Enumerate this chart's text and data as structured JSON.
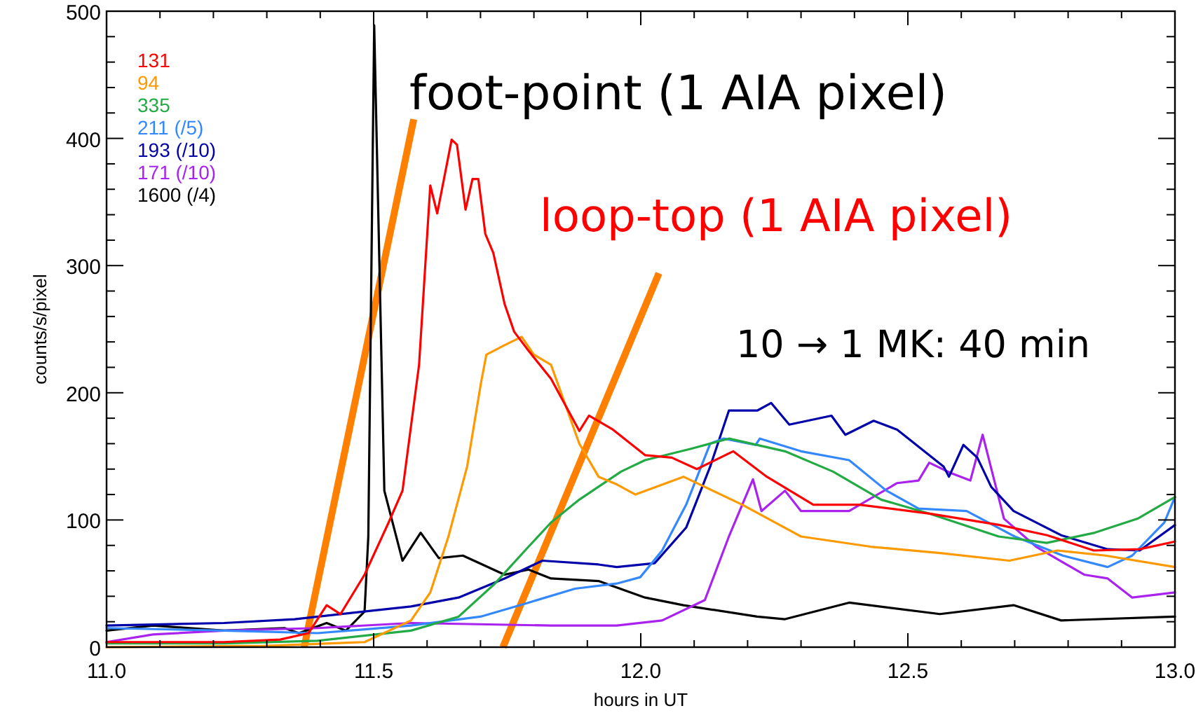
{
  "chart_data": {
    "type": "line",
    "xlabel": "hours in UT",
    "ylabel": "counts/s/pixel",
    "xlim": [
      11,
      13
    ],
    "ylim": [
      0,
      500
    ],
    "xticks": [
      {
        "value": 11,
        "label": "11.0"
      },
      {
        "value": 11.1,
        "label": null
      },
      {
        "value": 11.2,
        "label": null
      },
      {
        "value": 11.3,
        "label": null
      },
      {
        "value": 11.4,
        "label": null
      },
      {
        "value": 11.5,
        "label": "11.5"
      },
      {
        "value": 11.6,
        "label": null
      },
      {
        "value": 11.7,
        "label": null
      },
      {
        "value": 11.8,
        "label": null
      },
      {
        "value": 11.9,
        "label": null
      },
      {
        "value": 12,
        "label": "12.0"
      },
      {
        "value": 12.1,
        "label": null
      },
      {
        "value": 12.2,
        "label": null
      },
      {
        "value": 12.3,
        "label": null
      },
      {
        "value": 12.4,
        "label": null
      },
      {
        "value": 12.5,
        "label": "12.5"
      },
      {
        "value": 12.6,
        "label": null
      },
      {
        "value": 12.7,
        "label": null
      },
      {
        "value": 12.8,
        "label": null
      },
      {
        "value": 12.9,
        "label": null
      },
      {
        "value": 13,
        "label": "13.0"
      }
    ],
    "yticks": [
      0,
      {
        "value": 20,
        "label": null
      },
      {
        "value": 40,
        "label": null
      },
      {
        "value": 60,
        "label": null
      },
      {
        "value": 80,
        "label": null
      },
      100,
      {
        "value": 120,
        "label": null
      },
      {
        "value": 140,
        "label": null
      },
      {
        "value": 160,
        "label": null
      },
      {
        "value": 180,
        "label": null
      },
      200,
      {
        "value": 220,
        "label": null
      },
      {
        "value": 240,
        "label": null
      },
      {
        "value": 260,
        "label": null
      },
      {
        "value": 280,
        "label": null
      },
      300,
      {
        "value": 320,
        "label": null
      },
      {
        "value": 340,
        "label": null
      },
      {
        "value": 360,
        "label": null
      },
      {
        "value": 380,
        "label": null
      },
      400,
      {
        "value": 420,
        "label": null
      },
      {
        "value": 440,
        "label": null
      },
      {
        "value": 460,
        "label": null
      },
      {
        "value": 480,
        "label": null
      },
      500
    ],
    "grid": false,
    "legend": "top left",
    "marker": "none",
    "line_style": "solid",
    "annotations": [
      "foot-point (1 AIA pixel)",
      "loop-top (1 AIA pixel)",
      "10 → 1 MK: 40 min"
    ],
    "series": [
      {
        "name": "131",
        "color": "#ff0000",
        "x": [
          11.0,
          11.22,
          11.325,
          11.378,
          11.412,
          11.438,
          11.483,
          11.528,
          11.554,
          11.585,
          11.606,
          11.619,
          11.646,
          11.656,
          11.672,
          11.685,
          11.696,
          11.709,
          11.724,
          11.745,
          11.763,
          11.79,
          11.832,
          11.885,
          11.903,
          11.948,
          12.008,
          12.058,
          12.105,
          12.173,
          12.236,
          12.323,
          12.409,
          12.541,
          12.672,
          12.761,
          12.848,
          12.934,
          13.0
        ],
        "values": [
          4,
          4,
          6,
          11,
          33,
          26,
          57,
          98,
          123,
          222,
          363,
          341,
          399,
          395,
          344,
          368,
          368,
          325,
          310,
          270,
          248,
          233,
          211,
          170,
          182,
          171,
          151,
          149,
          140,
          154,
          134,
          112,
          112,
          105,
          96,
          88,
          76,
          77,
          83
        ]
      },
      {
        "name": "94",
        "color": "#ff9900",
        "x": [
          11.0,
          11.3,
          11.483,
          11.57,
          11.606,
          11.64,
          11.675,
          11.701,
          11.711,
          11.743,
          11.777,
          11.8,
          11.832,
          11.885,
          11.921,
          11.955,
          11.99,
          12.08,
          12.19,
          12.3,
          12.43,
          12.56,
          12.69,
          12.78,
          12.87,
          13.0
        ],
        "values": [
          0,
          1,
          4,
          21,
          43,
          87,
          142,
          208,
          230,
          237,
          244,
          230,
          222,
          160,
          134,
          128,
          120,
          134,
          112,
          87,
          79,
          74,
          68,
          76,
          72,
          63
        ]
      },
      {
        "name": "335",
        "color": "#22aa44",
        "x": [
          11.0,
          11.22,
          11.395,
          11.57,
          11.659,
          11.727,
          11.79,
          11.832,
          11.885,
          11.963,
          12.008,
          12.094,
          12.165,
          12.27,
          12.36,
          12.45,
          12.54,
          12.67,
          12.76,
          12.85,
          12.93,
          13.0
        ],
        "values": [
          3,
          3,
          5,
          13,
          24,
          50,
          79,
          98,
          116,
          138,
          147,
          156,
          164,
          154,
          138,
          116,
          105,
          87,
          82,
          90,
          101,
          118
        ]
      },
      {
        "name": "211 (/5)",
        "color": "#3388ff",
        "x": [
          11.0,
          11.22,
          11.395,
          11.57,
          11.7,
          11.79,
          11.877,
          11.955,
          11.999,
          12.04,
          12.085,
          12.13,
          12.155,
          12.215,
          12.223,
          12.3,
          12.39,
          12.46,
          12.52,
          12.61,
          12.7,
          12.79,
          12.874,
          12.92,
          12.98,
          13.0
        ],
        "values": [
          15,
          13,
          11,
          17,
          24,
          35,
          46,
          50,
          55,
          76,
          112,
          160,
          164,
          159,
          164,
          154,
          147,
          123,
          109,
          107,
          87,
          72,
          63,
          72,
          98,
          118
        ]
      },
      {
        "name": "193 (/10)",
        "color": "#0000aa",
        "x": [
          11.0,
          11.22,
          11.352,
          11.57,
          11.659,
          11.745,
          11.816,
          11.921,
          11.955,
          12.026,
          12.085,
          12.13,
          12.165,
          12.218,
          12.244,
          12.278,
          12.357,
          12.383,
          12.436,
          12.48,
          12.567,
          12.577,
          12.604,
          12.63,
          12.656,
          12.698,
          12.787,
          12.874,
          12.934,
          13.0
        ],
        "values": [
          17,
          19,
          22,
          32,
          39,
          54,
          68,
          65,
          63,
          66,
          94,
          142,
          186,
          186,
          192,
          175,
          182,
          167,
          178,
          171,
          142,
          134,
          159,
          149,
          126,
          107,
          88,
          77,
          76,
          96
        ]
      },
      {
        "name": "171 (/10)",
        "color": "#aa22ee",
        "x": [
          11.0,
          11.087,
          11.22,
          11.395,
          11.57,
          11.832,
          11.955,
          12.04,
          12.12,
          12.165,
          12.21,
          12.226,
          12.27,
          12.3,
          12.39,
          12.48,
          12.52,
          12.54,
          12.58,
          12.617,
          12.64,
          12.68,
          12.74,
          12.83,
          12.874,
          12.92,
          13.0
        ],
        "values": [
          4,
          10,
          13,
          15,
          19,
          17,
          17,
          21,
          37,
          87,
          132,
          107,
          123,
          107,
          107,
          129,
          131,
          145,
          137,
          131,
          167,
          101,
          79,
          57,
          54,
          39,
          43
        ]
      },
      {
        "name": "1600 (/4)",
        "color": "#000000",
        "x": [
          11.0,
          11.087,
          11.22,
          11.333,
          11.36,
          11.412,
          11.448,
          11.483,
          11.49,
          11.501,
          11.52,
          11.554,
          11.588,
          11.622,
          11.667,
          11.745,
          11.79,
          11.832,
          11.921,
          12.008,
          12.08,
          12.218,
          12.27,
          12.39,
          12.56,
          12.698,
          12.787,
          13.0
        ],
        "values": [
          13,
          17,
          13,
          15,
          11,
          19,
          13,
          28,
          87,
          489,
          123,
          68,
          90,
          70,
          72,
          57,
          61,
          54,
          52,
          39,
          33,
          24,
          22,
          35,
          26,
          33,
          21,
          24
        ]
      },
      {
        "color": "#ff8000",
        "x": [
          11.37,
          11.575
        ],
        "values": [
          0,
          415
        ]
      },
      {
        "color": "#ff8000",
        "x": [
          11.742,
          12.034
        ],
        "values": [
          0,
          294
        ]
      }
    ]
  }
}
